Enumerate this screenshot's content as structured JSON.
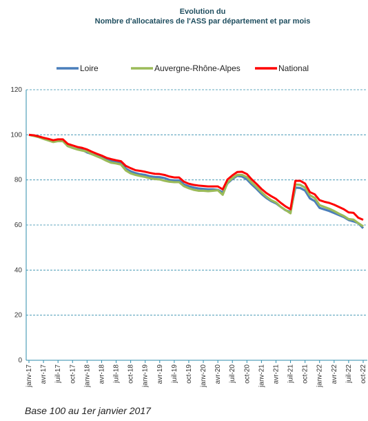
{
  "chart_data": {
    "type": "line",
    "title": "Evolution du",
    "subtitle": "Nombre d'allocataires de l'ASS par département et par mois",
    "note": "Base 100 au 1er janvier 2017",
    "categories": [
      "janv-17",
      null,
      null,
      "avr-17",
      null,
      null,
      "juil-17",
      null,
      null,
      "oct-17",
      null,
      null,
      "janv-18",
      null,
      null,
      "avr-18",
      null,
      null,
      "juil-18",
      null,
      null,
      "oct-18",
      null,
      null,
      "janv-19",
      null,
      null,
      "avr-19",
      null,
      null,
      "juil-19",
      null,
      null,
      "oct-19",
      null,
      null,
      "janv-20",
      null,
      null,
      "avr-20",
      null,
      null,
      "juil-20",
      null,
      null,
      "oct-20",
      null,
      null,
      "janv-21",
      null,
      null,
      "avr-21",
      null,
      null,
      "juil-21",
      null,
      null,
      "oct-21",
      null,
      null,
      "janv-22",
      null,
      null,
      "avr-22",
      null,
      null,
      "juil-22",
      null,
      null,
      "oct-22"
    ],
    "series": [
      {
        "name": "Loire",
        "color": "#4a7ebb",
        "values": [
          100,
          99.6,
          99,
          98.3,
          97.8,
          97.2,
          97.6,
          97.5,
          95,
          94.2,
          93.6,
          93.3,
          92.2,
          91.4,
          90.8,
          90,
          89,
          88.4,
          87.9,
          87.5,
          85,
          83.8,
          83,
          82.5,
          82.2,
          81.6,
          81.3,
          81.2,
          80.8,
          80,
          79.8,
          79.8,
          78,
          77.2,
          76.6,
          76.2,
          76,
          75.8,
          75.8,
          75.6,
          74.5,
          78.5,
          80.4,
          81.8,
          81.5,
          80.2,
          78,
          76,
          73.8,
          72,
          70.6,
          69.6,
          68,
          66.5,
          65.8,
          76.6,
          76.4,
          75.3,
          71.8,
          70.6,
          67.6,
          66.9,
          66.2,
          65.3,
          64.4,
          63.5,
          62.2,
          61.6,
          60.8,
          58.6
        ]
      },
      {
        "name": "Auvergne-Rhône-Alpes",
        "color": "#9bbb59",
        "values": [
          100,
          99.5,
          99,
          98.2,
          97.5,
          96.8,
          97.2,
          97.2,
          95,
          94.2,
          93.5,
          93,
          92.6,
          91.4,
          90.5,
          89.6,
          88.5,
          87.6,
          87.3,
          86.8,
          84.2,
          82.9,
          82.2,
          81.7,
          81.3,
          80.7,
          80.4,
          80.2,
          79.6,
          79.2,
          79,
          79,
          77.2,
          76.3,
          75.6,
          75.2,
          75.2,
          75,
          75.2,
          75.4,
          73.4,
          78.8,
          80.8,
          82.2,
          82.2,
          81.2,
          78.8,
          76.8,
          74.6,
          72.6,
          71,
          70,
          68,
          66.6,
          65.2,
          78,
          77.8,
          76.6,
          73.2,
          72,
          68.8,
          68,
          67.2,
          66.2,
          65,
          64,
          62.6,
          62.4,
          60.8,
          59.4
        ]
      },
      {
        "name": "National",
        "color": "#ff0000",
        "values": [
          100,
          99.8,
          99.3,
          98.7,
          98.2,
          97.6,
          98,
          98,
          96,
          95.3,
          94.6,
          94.2,
          93.5,
          92.5,
          91.6,
          90.8,
          89.8,
          89.2,
          88.7,
          88.3,
          86.2,
          85.2,
          84.3,
          84,
          83.6,
          83.1,
          82.7,
          82.6,
          82.2,
          81.5,
          81.1,
          81.1,
          79.2,
          78.3,
          77.8,
          77.5,
          77.3,
          77.1,
          77.1,
          77.1,
          75.8,
          80.2,
          82,
          83.5,
          83.6,
          82.6,
          80.2,
          78.2,
          76,
          74.2,
          72.8,
          71.6,
          69.8,
          68.2,
          67,
          79.6,
          79.6,
          78.4,
          74.6,
          73.6,
          71,
          70.3,
          69.8,
          69,
          68,
          67,
          65.6,
          65.4,
          63.2,
          62.3
        ]
      }
    ],
    "ylim": [
      0,
      120
    ],
    "yticks": [
      0,
      20,
      40,
      60,
      80,
      100,
      120
    ],
    "grid": true,
    "legend": "top"
  }
}
